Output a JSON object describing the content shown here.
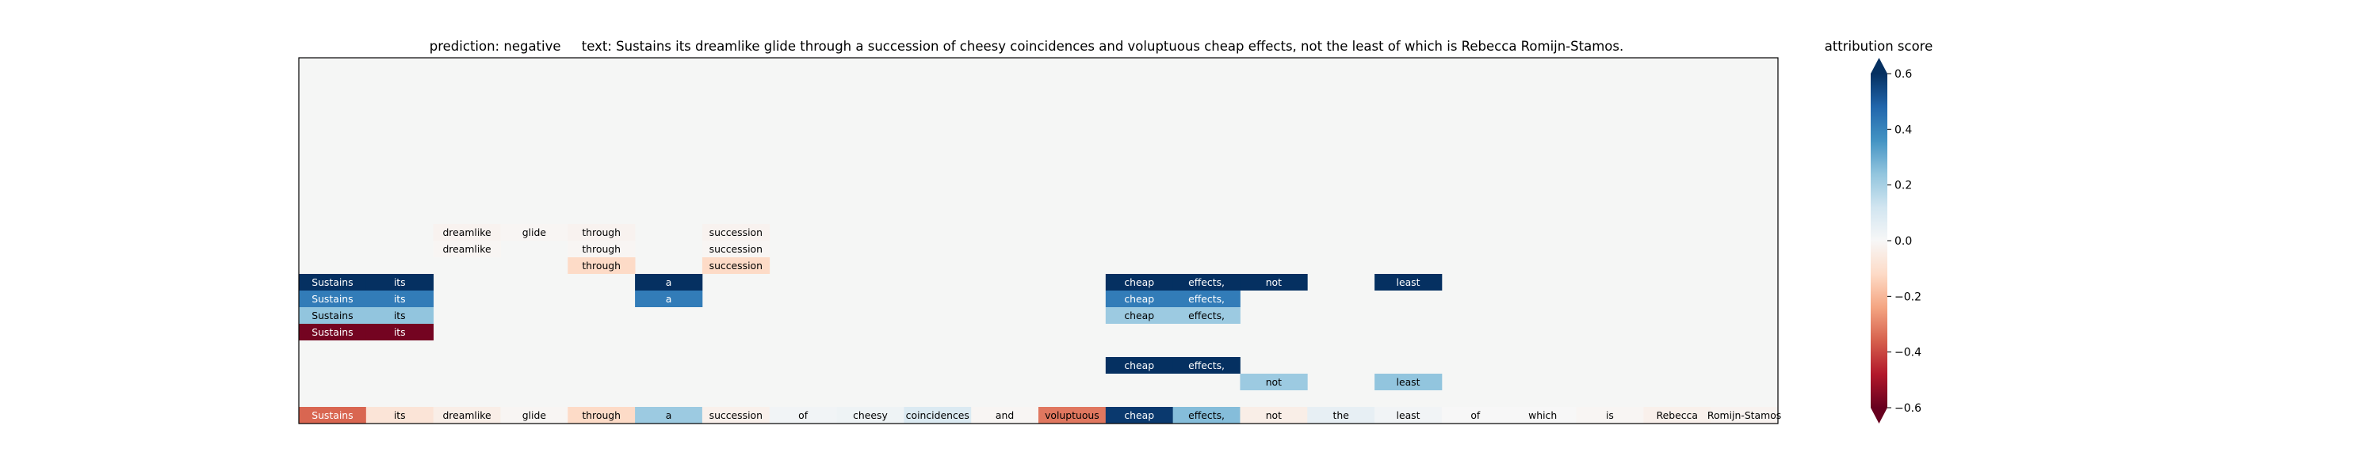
{
  "chart_data": {
    "type": "heatmap",
    "title": {
      "prediction_label": "prediction:",
      "prediction_value": "negative",
      "text_label": "text:",
      "text_value": "Sustains its dreamlike glide through a succession of cheesy coincidences and voluptuous cheap effects, not the least of which is Rebecca Romijn-Stamos."
    },
    "tokens": [
      "Sustains",
      "its",
      "dreamlike",
      "glide",
      "through",
      "a",
      "succession",
      "of",
      "cheesy",
      "coincidences",
      "and",
      "voluptuous",
      "cheap",
      "effects,",
      "not",
      "the",
      "least",
      "of",
      "which",
      "is",
      "Rebecca",
      "Romijn-Stamos"
    ],
    "base_scores": [
      -0.35,
      -0.08,
      -0.04,
      -0.01,
      -0.12,
      0.22,
      -0.03,
      0.02,
      0.03,
      0.09,
      -0.01,
      -0.32,
      0.58,
      0.26,
      -0.04,
      0.05,
      0.02,
      0.0,
      0.0,
      -0.01,
      -0.03,
      -0.02
    ],
    "levels": [
      {
        "cells": []
      },
      {
        "cells": [
          {
            "i": 14,
            "v": 0.22
          },
          {
            "i": 16,
            "v": 0.24
          }
        ]
      },
      {
        "cells": [
          {
            "i": 12,
            "v": 0.62
          },
          {
            "i": 13,
            "v": 0.62
          }
        ]
      },
      {
        "cells": []
      },
      {
        "cells": [
          {
            "i": 0,
            "v": -0.58
          },
          {
            "i": 1,
            "v": -0.58
          }
        ]
      },
      {
        "cells": [
          {
            "i": 0,
            "v": 0.24
          },
          {
            "i": 1,
            "v": 0.24
          },
          {
            "i": 12,
            "v": 0.22
          },
          {
            "i": 13,
            "v": 0.22
          }
        ]
      },
      {
        "cells": [
          {
            "i": 0,
            "v": 0.42
          },
          {
            "i": 1,
            "v": 0.42
          },
          {
            "i": 5,
            "v": 0.42
          },
          {
            "i": 12,
            "v": 0.42
          },
          {
            "i": 13,
            "v": 0.42
          }
        ]
      },
      {
        "cells": [
          {
            "i": 0,
            "v": 0.63
          },
          {
            "i": 1,
            "v": 0.63
          },
          {
            "i": 5,
            "v": 0.63
          },
          {
            "i": 12,
            "v": 0.63
          },
          {
            "i": 13,
            "v": 0.63
          },
          {
            "i": 14,
            "v": 0.63
          },
          {
            "i": 16,
            "v": 0.63
          }
        ]
      },
      {
        "cells": [
          {
            "i": 4,
            "v": -0.12
          },
          {
            "i": 6,
            "v": -0.12
          }
        ]
      },
      {
        "cells": [
          {
            "i": 2,
            "v": -0.01
          },
          {
            "i": 4,
            "v": -0.01
          },
          {
            "i": 6,
            "v": -0.01
          }
        ]
      },
      {
        "cells": [
          {
            "i": 2,
            "v": -0.02
          },
          {
            "i": 3,
            "v": -0.01
          },
          {
            "i": 4,
            "v": -0.02
          },
          {
            "i": 6,
            "v": -0.02
          }
        ]
      }
    ],
    "colorbar": {
      "label": "attribution score",
      "cmap": "RdBu",
      "vmin": -0.6,
      "vmax": 0.6,
      "ticks": [
        -0.6,
        -0.4,
        -0.2,
        0.0,
        0.2,
        0.4,
        0.6
      ],
      "tick_labels": [
        "−0.6",
        "−0.4",
        "−0.2",
        "0.0",
        "0.2",
        "0.4",
        "0.6"
      ]
    },
    "background_color": "#f5f6f5"
  }
}
